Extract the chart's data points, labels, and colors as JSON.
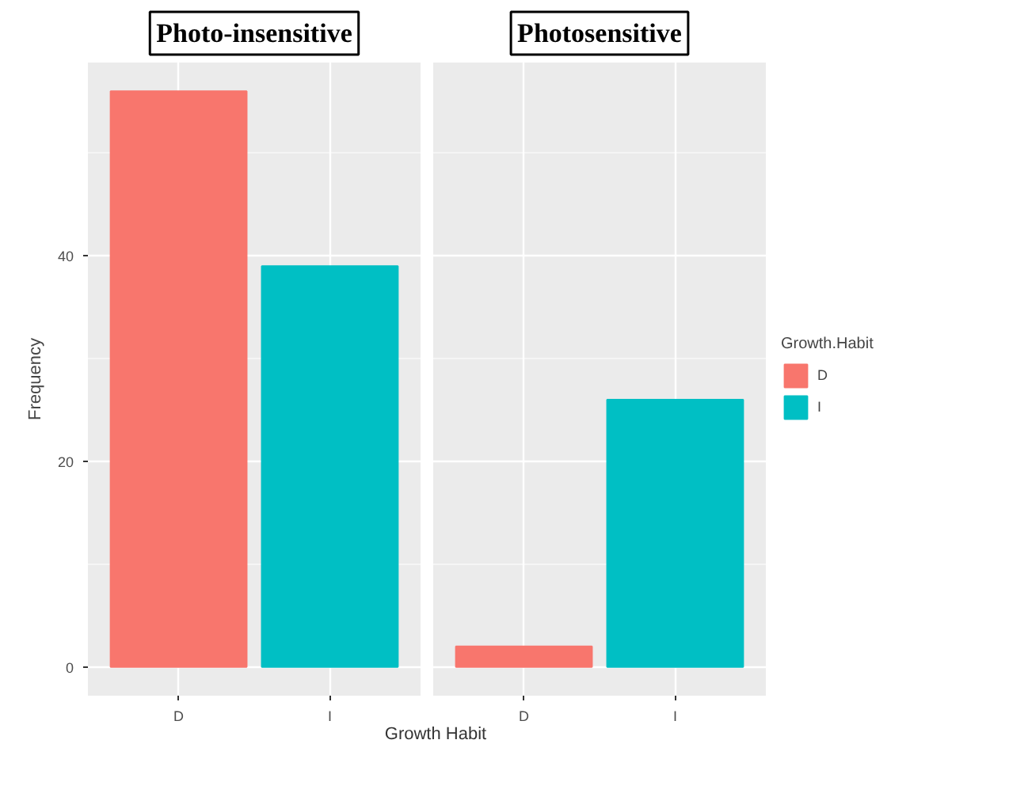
{
  "chart_data": [
    {
      "type": "bar",
      "title": "Photo-insensitive",
      "ylabel": "Frequency",
      "xlabel": "Growth Habit",
      "categories": [
        "D",
        "I"
      ],
      "series": [
        {
          "color": "#f8766d",
          "values": [
            56,
            null
          ]
        },
        {
          "color": "#00bfc4",
          "values": [
            null,
            39
          ]
        }
      ],
      "ylim": [
        -2.8,
        58.8
      ],
      "yticks": [
        0,
        20,
        40
      ],
      "grid": true
    },
    {
      "type": "bar",
      "title": "Photosensitive",
      "categories": [
        "D",
        "I"
      ],
      "series": [
        {
          "name": "D",
          "color": "#f8766d",
          "values": [
            2,
            null
          ]
        },
        {
          "name": "I",
          "color": "#00bfc4",
          "values": [
            null,
            26
          ]
        }
      ],
      "ylim": [
        -2.8,
        58.8
      ],
      "yticks": [
        0,
        20,
        40
      ],
      "grid": true,
      "legend": "right",
      "legend_title": "Growth.Habit",
      "tick_labels": "x"
    }
  ]
}
